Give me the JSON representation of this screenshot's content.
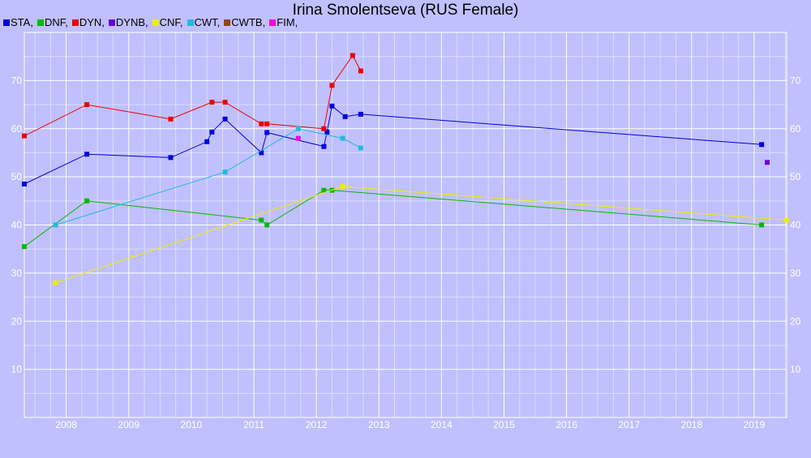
{
  "title": "Irina Smolentseva (RUS Female)",
  "legend": [
    {
      "label": "STA,",
      "color": "#0000dd"
    },
    {
      "label": "DNF,",
      "color": "#00bb00"
    },
    {
      "label": "DYN,",
      "color": "#ee0000"
    },
    {
      "label": "DYNB,",
      "color": "#6600dd"
    },
    {
      "label": "CNF,",
      "color": "#eeee00"
    },
    {
      "label": "CWT,",
      "color": "#22bbdd"
    },
    {
      "label": "CWTB,",
      "color": "#994411"
    },
    {
      "label": "FIM,",
      "color": "#ee00ee"
    }
  ],
  "chart_data": {
    "type": "line",
    "title": "Irina Smolentseva (RUS Female)",
    "xlim": [
      2007.33,
      2019.52
    ],
    "ylim": [
      0,
      80
    ],
    "x_ticks": [
      2008,
      2009,
      2010,
      2011,
      2012,
      2013,
      2014,
      2015,
      2016,
      2017,
      2018,
      2019
    ],
    "y_ticks": [
      10,
      20,
      30,
      40,
      50,
      60,
      70
    ],
    "grid": true,
    "legend_position": "top-left",
    "series": [
      {
        "name": "STA",
        "color": "#0000dd",
        "points": [
          [
            2007.33,
            48.5
          ],
          [
            2008.33,
            54.7
          ],
          [
            2009.67,
            54.0
          ],
          [
            2010.25,
            57.3
          ],
          [
            2010.33,
            59.3
          ],
          [
            2010.54,
            62.0
          ],
          [
            2011.12,
            55.0
          ],
          [
            2011.21,
            59.2
          ],
          [
            2012.12,
            56.3
          ],
          [
            2012.17,
            59.3
          ],
          [
            2012.25,
            64.7
          ],
          [
            2012.46,
            62.5
          ],
          [
            2012.71,
            63.0
          ],
          [
            2019.12,
            56.7
          ]
        ]
      },
      {
        "name": "DNF",
        "color": "#00bb00",
        "points": [
          [
            2007.33,
            35.5
          ],
          [
            2008.33,
            45.0
          ],
          [
            2011.12,
            41.0
          ],
          [
            2011.21,
            40.0
          ],
          [
            2012.12,
            47.2
          ],
          [
            2012.25,
            47.2
          ],
          [
            2019.12,
            40.0
          ]
        ]
      },
      {
        "name": "DYN",
        "color": "#ee0000",
        "points": [
          [
            2007.33,
            58.5
          ],
          [
            2008.33,
            65.0
          ],
          [
            2009.67,
            62.0
          ],
          [
            2010.33,
            65.5
          ],
          [
            2010.54,
            65.5
          ],
          [
            2011.12,
            61.0
          ],
          [
            2011.21,
            61.0
          ],
          [
            2012.12,
            60.0
          ],
          [
            2012.25,
            69.0
          ],
          [
            2012.58,
            75.2
          ],
          [
            2012.71,
            72.0
          ]
        ]
      },
      {
        "name": "DYNB",
        "color": "#6600dd",
        "points": [
          [
            2019.21,
            53.0
          ]
        ]
      },
      {
        "name": "CNF",
        "color": "#eeee00",
        "points": [
          [
            2007.83,
            28.0
          ],
          [
            2012.42,
            48.0
          ],
          [
            2019.52,
            41.0
          ]
        ]
      },
      {
        "name": "CWT",
        "color": "#22bbdd",
        "points": [
          [
            2007.83,
            40.0
          ],
          [
            2010.54,
            51.0
          ],
          [
            2011.71,
            60.0
          ],
          [
            2012.42,
            58.0
          ],
          [
            2012.71,
            56.0
          ]
        ]
      },
      {
        "name": "CWTB",
        "color": "#994411",
        "points": []
      },
      {
        "name": "FIM",
        "color": "#ee00ee",
        "points": [
          [
            2011.71,
            58.0
          ]
        ]
      }
    ]
  }
}
